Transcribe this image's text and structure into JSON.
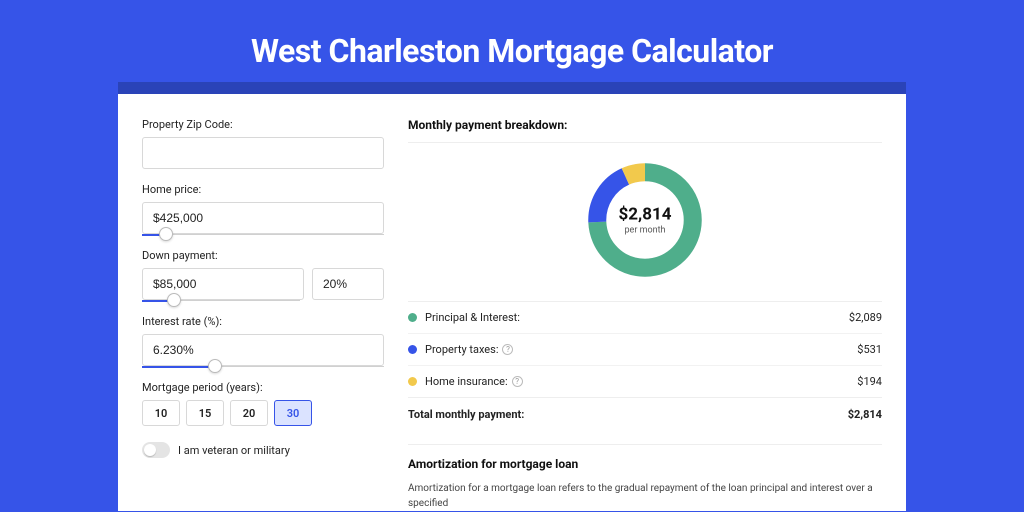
{
  "page": {
    "title": "West Charleston Mortgage Calculator",
    "background_color": "#3654e8"
  },
  "form": {
    "zip": {
      "label": "Property Zip Code:",
      "value": ""
    },
    "home_price": {
      "label": "Home price:",
      "value": "$425,000",
      "slider_pct": 10
    },
    "down_payment": {
      "label": "Down payment:",
      "amount": "$85,000",
      "pct": "20%",
      "slider_pct": 20
    },
    "interest_rate": {
      "label": "Interest rate (%):",
      "value": "6.230%",
      "slider_pct": 30
    },
    "period": {
      "label": "Mortgage period (years):",
      "options": [
        "10",
        "15",
        "20",
        "30"
      ],
      "selected": "30"
    },
    "veteran": {
      "label": "I am veteran or military",
      "checked": false
    }
  },
  "breakdown": {
    "header": "Monthly payment breakdown:",
    "donut": {
      "amount": "$2,814",
      "sub": "per month",
      "segments": [
        {
          "key": "pi",
          "color": "#4fae8b",
          "pct": 74.2
        },
        {
          "key": "tax",
          "color": "#3654e8",
          "pct": 18.9
        },
        {
          "key": "ins",
          "color": "#f2c94c",
          "pct": 6.9
        }
      ]
    },
    "items": [
      {
        "key": "pi",
        "label": "Principal & Interest:",
        "value": "$2,089",
        "color": "#4fae8b",
        "help": false
      },
      {
        "key": "tax",
        "label": "Property taxes:",
        "value": "$531",
        "color": "#3654e8",
        "help": true
      },
      {
        "key": "ins",
        "label": "Home insurance:",
        "value": "$194",
        "color": "#f2c94c",
        "help": true
      }
    ],
    "total": {
      "label": "Total monthly payment:",
      "value": "$2,814"
    }
  },
  "amortization": {
    "title": "Amortization for mortgage loan",
    "text": "Amortization for a mortgage loan refers to the gradual repayment of the loan principal and interest over a specified"
  }
}
